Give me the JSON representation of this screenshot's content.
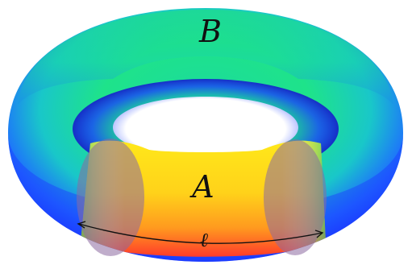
{
  "labels": {
    "region_outer": "B",
    "region_inner": "A",
    "length": "ℓ"
  },
  "colors": {
    "top_green": "#1ee38a",
    "mid_cyan": "#19c7c9",
    "deep_blue": "#1c3bff",
    "band_yellow": "#ffe81a",
    "band_orange": "#ff9a1f",
    "band_red": "#ff3b2a",
    "cap_shade": "#8c6aa0",
    "arrow": "#111111"
  }
}
